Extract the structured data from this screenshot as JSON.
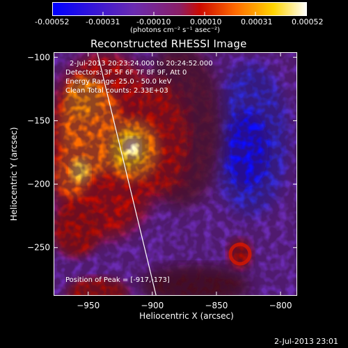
{
  "window": {
    "bottom_timestamp": "2-Jul-2013 23:01"
  },
  "colorbar": {
    "tick_labels": [
      "-0.00052",
      "-0.00031",
      "-0.00010",
      "0.00010",
      "0.00031",
      "0.00052"
    ],
    "unit_label": "(photons cm⁻² s⁻¹ asec⁻²)",
    "range": [
      -0.00052,
      0.00052
    ]
  },
  "image": {
    "title": "Reconstructed RHESSI Image",
    "overlay": {
      "time_range": "2-Jul-2013 20:23:24.000 to 20:24:52.000",
      "detectors": "Detectors: 3F 5F 6F 7F 8F 9F, Att 0",
      "energy": "Energy Range: 25.0 - 50.0 keV",
      "method": "Clean    Total counts: 2.33E+03",
      "peak": "Position of Peak = [-917,-173]"
    }
  },
  "chart_data": {
    "type": "heatmap",
    "title": "Reconstructed RHESSI Image",
    "xlabel": "Heliocentric X (arcsec)",
    "ylabel": "Heliocentric Y (arcsec)",
    "xlim": [
      -977,
      -787
    ],
    "ylim": [
      -288,
      -96
    ],
    "x_ticks": [
      -950,
      -900,
      -850,
      -800
    ],
    "y_ticks": [
      -100,
      -150,
      -200,
      -250
    ],
    "x_tick_labels": [
      "−950",
      "−900",
      "−850",
      "−800"
    ],
    "y_tick_labels": [
      "−100",
      "−150",
      "−200",
      "−250"
    ],
    "colormap": [
      "#0000ff",
      "#6a2bb0",
      "#8a1f66",
      "#cc0a00",
      "#ff7a00",
      "#ffd400",
      "#ffffff"
    ],
    "peak_position": [
      -917,
      -173
    ],
    "limb_line": [
      [
        -943,
        -96
      ],
      [
        -897,
        -288
      ]
    ]
  }
}
